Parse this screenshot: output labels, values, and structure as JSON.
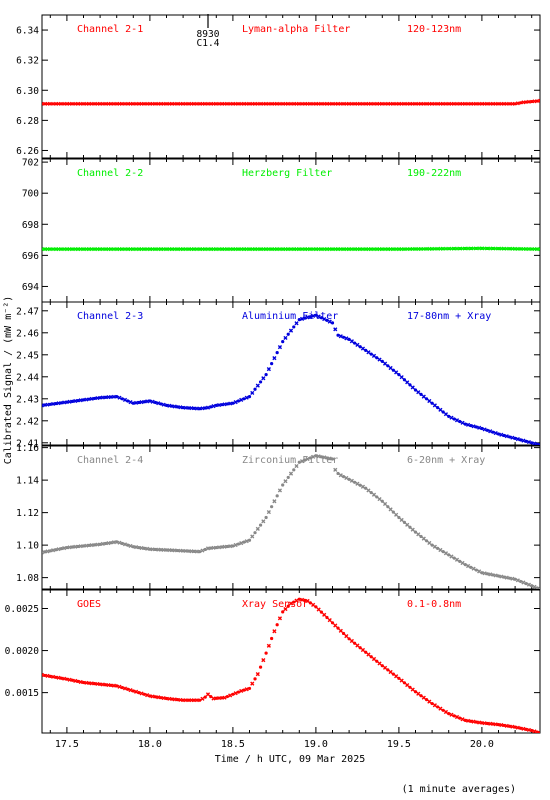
{
  "chart_data": {
    "type": "scatter",
    "xlabel": "Time / h UTC, 09 Mar 2025",
    "ylabel": "Calibrated Signal / (mW m⁻²)",
    "footnote": "(1 minute averages)",
    "x_range": [
      17.35,
      20.35
    ],
    "x_ticks": [
      "17.5",
      "18.0",
      "18.5",
      "19.0",
      "19.5",
      "20.0"
    ],
    "flare_marker": {
      "x": 18.35,
      "labels": [
        "8930",
        "C1.4"
      ]
    },
    "panels": [
      {
        "channel": "Channel 2-1",
        "filter": "Lyman-alpha Filter",
        "band": "120-123nm",
        "color": "#ff0000",
        "ylim": [
          6.255,
          6.35
        ],
        "y_ticks": [
          "6.26",
          "6.28",
          "6.30",
          "6.32",
          "6.34"
        ],
        "series": [
          {
            "x": [
              17.35,
              18.0,
              18.5,
              19.0,
              19.5,
              20.0,
              20.2,
              20.25,
              20.35
            ],
            "y": [
              6.291,
              6.291,
              6.291,
              6.291,
              6.291,
              6.291,
              6.291,
              6.292,
              6.293
            ]
          }
        ]
      },
      {
        "channel": "Channel 2-2",
        "filter": "Herzberg Filter",
        "band": "190-222nm",
        "color": "#00ee00",
        "ylim": [
          693.0,
          702.2
        ],
        "y_ticks": [
          "694",
          "696",
          "698",
          "700",
          "702"
        ],
        "series": [
          {
            "x": [
              17.35,
              18.0,
              18.5,
              19.0,
              19.5,
              20.0,
              20.35
            ],
            "y": [
              696.4,
              696.4,
              696.4,
              696.4,
              696.4,
              696.45,
              696.4
            ]
          }
        ]
      },
      {
        "channel": "Channel 2-3",
        "filter": "Aluminium Filter",
        "band": "17-80nm + Xray",
        "color": "#0000dd",
        "ylim": [
          2.409,
          2.474
        ],
        "y_ticks": [
          "2.41",
          "2.42",
          "2.43",
          "2.44",
          "2.45",
          "2.46",
          "2.47"
        ],
        "series": [
          {
            "x": [
              17.35,
              17.5,
              17.7,
              17.8,
              17.9,
              18.0,
              18.1,
              18.2,
              18.3,
              18.35,
              18.4,
              18.5,
              18.6,
              18.7,
              18.8,
              18.9,
              19.0,
              19.1,
              19.12,
              19.13,
              19.2,
              19.3,
              19.4,
              19.5,
              19.6,
              19.7,
              19.8,
              19.9,
              20.0,
              20.1,
              20.2,
              20.35
            ],
            "y": [
              2.427,
              2.4285,
              2.4305,
              2.431,
              2.428,
              2.429,
              2.427,
              2.426,
              2.4255,
              2.426,
              2.427,
              2.428,
              2.431,
              2.441,
              2.456,
              2.466,
              2.468,
              2.4645,
              2.461,
              2.459,
              2.457,
              2.452,
              2.447,
              2.441,
              2.434,
              2.428,
              2.422,
              2.4185,
              2.4165,
              2.414,
              2.412,
              2.409
            ]
          }
        ]
      },
      {
        "channel": "Channel 2-4",
        "filter": "Zirconium Filter",
        "band": "6-20nm + Xray",
        "color": "#888888",
        "ylim": [
          1.073,
          1.161
        ],
        "y_ticks": [
          "1.08",
          "1.10",
          "1.12",
          "1.14",
          "1.16"
        ],
        "series": [
          {
            "x": [
              17.35,
              17.5,
              17.7,
              17.8,
              17.9,
              18.0,
              18.2,
              18.3,
              18.35,
              18.5,
              18.6,
              18.7,
              18.8,
              18.9,
              19.0,
              19.1,
              19.12,
              19.15,
              19.2,
              19.3,
              19.4,
              19.5,
              19.6,
              19.7,
              19.8,
              19.9,
              20.0,
              20.1,
              20.2,
              20.35
            ],
            "y": [
              1.0955,
              1.0985,
              1.1005,
              1.102,
              1.099,
              1.0975,
              1.0965,
              1.096,
              1.098,
              1.0995,
              1.103,
              1.117,
              1.137,
              1.151,
              1.155,
              1.153,
              1.145,
              1.143,
              1.1405,
              1.135,
              1.127,
              1.117,
              1.108,
              1.1,
              1.094,
              1.088,
              1.083,
              1.081,
              1.079,
              1.073
            ]
          }
        ]
      },
      {
        "channel": "GOES",
        "filter": "Xray Sensor",
        "band": "0.1-0.8nm",
        "color": "#ff0000",
        "ylim": [
          0.00102,
          0.00272
        ],
        "y_ticks": [
          "0.0015",
          "0.0020",
          "0.0025"
        ],
        "series": [
          {
            "x": [
              17.35,
              17.5,
              17.6,
              17.8,
              17.9,
              18.0,
              18.1,
              18.2,
              18.3,
              18.33,
              18.35,
              18.38,
              18.45,
              18.55,
              18.6,
              18.65,
              18.7,
              18.75,
              18.8,
              18.85,
              18.9,
              18.95,
              19.0,
              19.1,
              19.2,
              19.3,
              19.4,
              19.5,
              19.6,
              19.7,
              19.8,
              19.9,
              20.0,
              20.1,
              20.2,
              20.3,
              20.35
            ],
            "y": [
              0.00171,
              0.00166,
              0.00162,
              0.00158,
              0.00152,
              0.00146,
              0.00143,
              0.00141,
              0.00141,
              0.00144,
              0.00148,
              0.00143,
              0.00144,
              0.00152,
              0.00155,
              0.00172,
              0.00197,
              0.00223,
              0.00246,
              0.00256,
              0.00261,
              0.00259,
              0.00252,
              0.00233,
              0.00214,
              0.00198,
              0.00182,
              0.00167,
              0.00151,
              0.00137,
              0.00125,
              0.00117,
              0.00114,
              0.00112,
              0.00109,
              0.00105,
              0.00102
            ]
          }
        ]
      }
    ]
  }
}
